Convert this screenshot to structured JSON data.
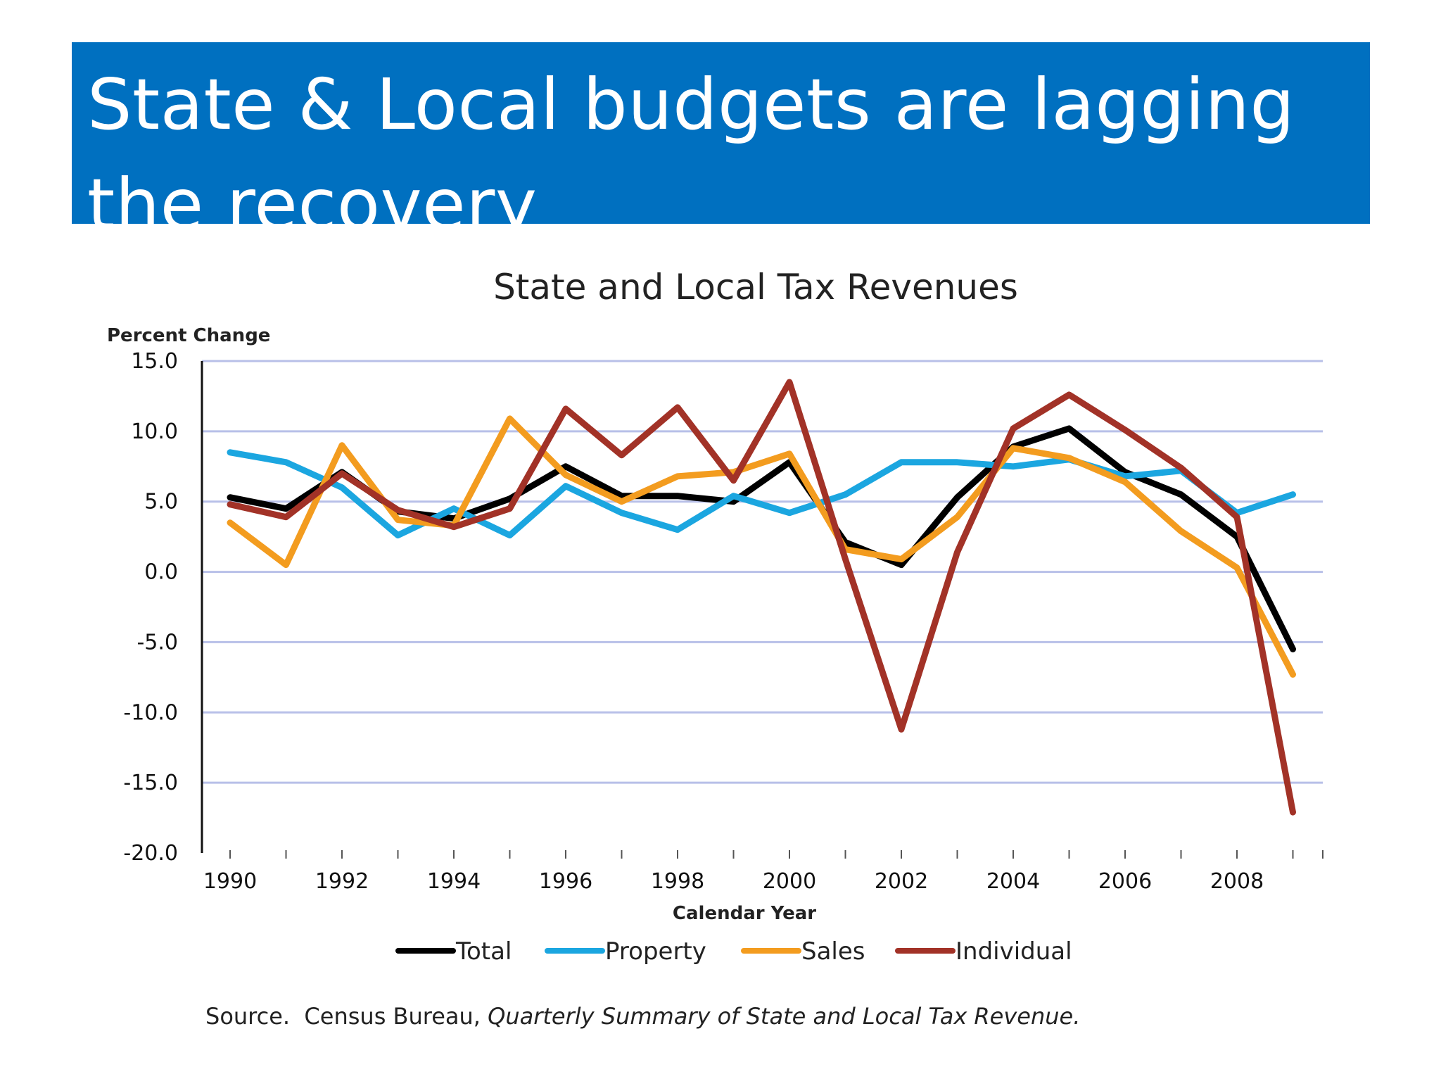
{
  "slide": {
    "title": "State & Local budgets are lagging the recovery",
    "banner_color": "#0070C0"
  },
  "chart_data": {
    "type": "line",
    "title": "State and Local Tax Revenues",
    "ylabel": "Percent Change",
    "xlabel": "Calendar Year",
    "ylim": [
      -20,
      15
    ],
    "yticks": [
      "15.0",
      "10.0",
      "5.0",
      "0.0",
      "-5.0",
      "-10.0",
      "-15.0",
      "-20.0"
    ],
    "ytick_values": [
      15,
      10,
      5,
      0,
      -5,
      -10,
      -15,
      -20
    ],
    "x": [
      1990,
      1991,
      1992,
      1993,
      1994,
      1995,
      1996,
      1997,
      1998,
      1999,
      2000,
      2001,
      2002,
      2003,
      2004,
      2005,
      2006,
      2007,
      2008,
      2009
    ],
    "xtick_labels": [
      "1990",
      "1992",
      "1994",
      "1996",
      "1998",
      "2000",
      "2002",
      "2004",
      "2006",
      "2008"
    ],
    "xtick_values": [
      1990,
      1992,
      1994,
      1996,
      1998,
      2000,
      2002,
      2004,
      2006,
      2008
    ],
    "grid": true,
    "legend_position": "bottom",
    "series": [
      {
        "name": "Total",
        "color": "#000000",
        "values": [
          5.3,
          4.5,
          7.1,
          4.3,
          3.8,
          5.2,
          7.5,
          5.4,
          5.4,
          5.0,
          7.8,
          2.1,
          0.5,
          5.3,
          8.9,
          10.2,
          7.1,
          5.5,
          2.5,
          -5.5
        ]
      },
      {
        "name": "Property",
        "color": "#1BA6E0",
        "values": [
          8.5,
          7.8,
          6.0,
          2.6,
          4.5,
          2.6,
          6.1,
          4.2,
          3.0,
          5.4,
          4.2,
          5.5,
          7.8,
          7.8,
          7.5,
          8.0,
          6.8,
          7.2,
          4.2,
          5.5
        ]
      },
      {
        "name": "Sales",
        "color": "#F39C1F",
        "values": [
          3.5,
          0.5,
          9.0,
          3.7,
          3.3,
          10.9,
          6.9,
          5.0,
          6.8,
          7.1,
          8.4,
          1.6,
          0.9,
          3.9,
          8.8,
          8.1,
          6.4,
          2.9,
          0.3,
          -7.3
        ]
      },
      {
        "name": "Individual",
        "color": "#A23227",
        "values": [
          4.8,
          3.9,
          7.0,
          4.4,
          3.2,
          4.5,
          11.6,
          8.3,
          11.7,
          6.5,
          13.5,
          0.9,
          -11.2,
          1.4,
          10.2,
          12.6,
          10.1,
          7.4,
          3.9,
          -17.1
        ]
      }
    ],
    "source_prefix": "Source.  Census Bureau, ",
    "source_title": "Quarterly Summary of State and Local Tax Revenue."
  }
}
